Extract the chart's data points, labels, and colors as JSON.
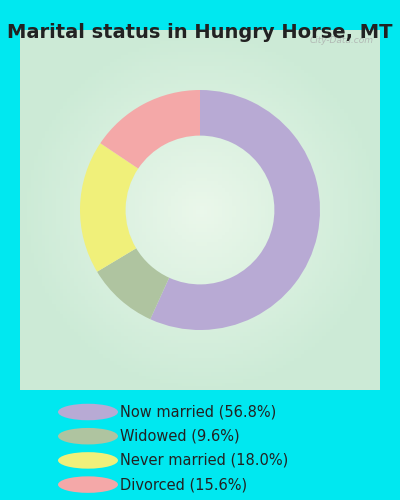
{
  "title": "Marital status in Hungry Horse, MT",
  "categories": [
    "Now married",
    "Widowed",
    "Never married",
    "Divorced"
  ],
  "values": [
    56.8,
    9.6,
    18.0,
    15.6
  ],
  "colors": [
    "#b8aad4",
    "#afc4a0",
    "#f0f07a",
    "#f4a8a8"
  ],
  "legend_labels": [
    "Now married (56.8%)",
    "Widowed (9.6%)",
    "Never married (18.0%)",
    "Divorced (15.6%)"
  ],
  "bg_cyan": "#00e8f0",
  "bg_chart_center": "#ddf0e4",
  "bg_chart_edge": "#c8e8d4",
  "title_fontsize": 14,
  "title_color": "#222222",
  "watermark": "City-Data.com",
  "donut_width": 0.38,
  "startangle": 90
}
